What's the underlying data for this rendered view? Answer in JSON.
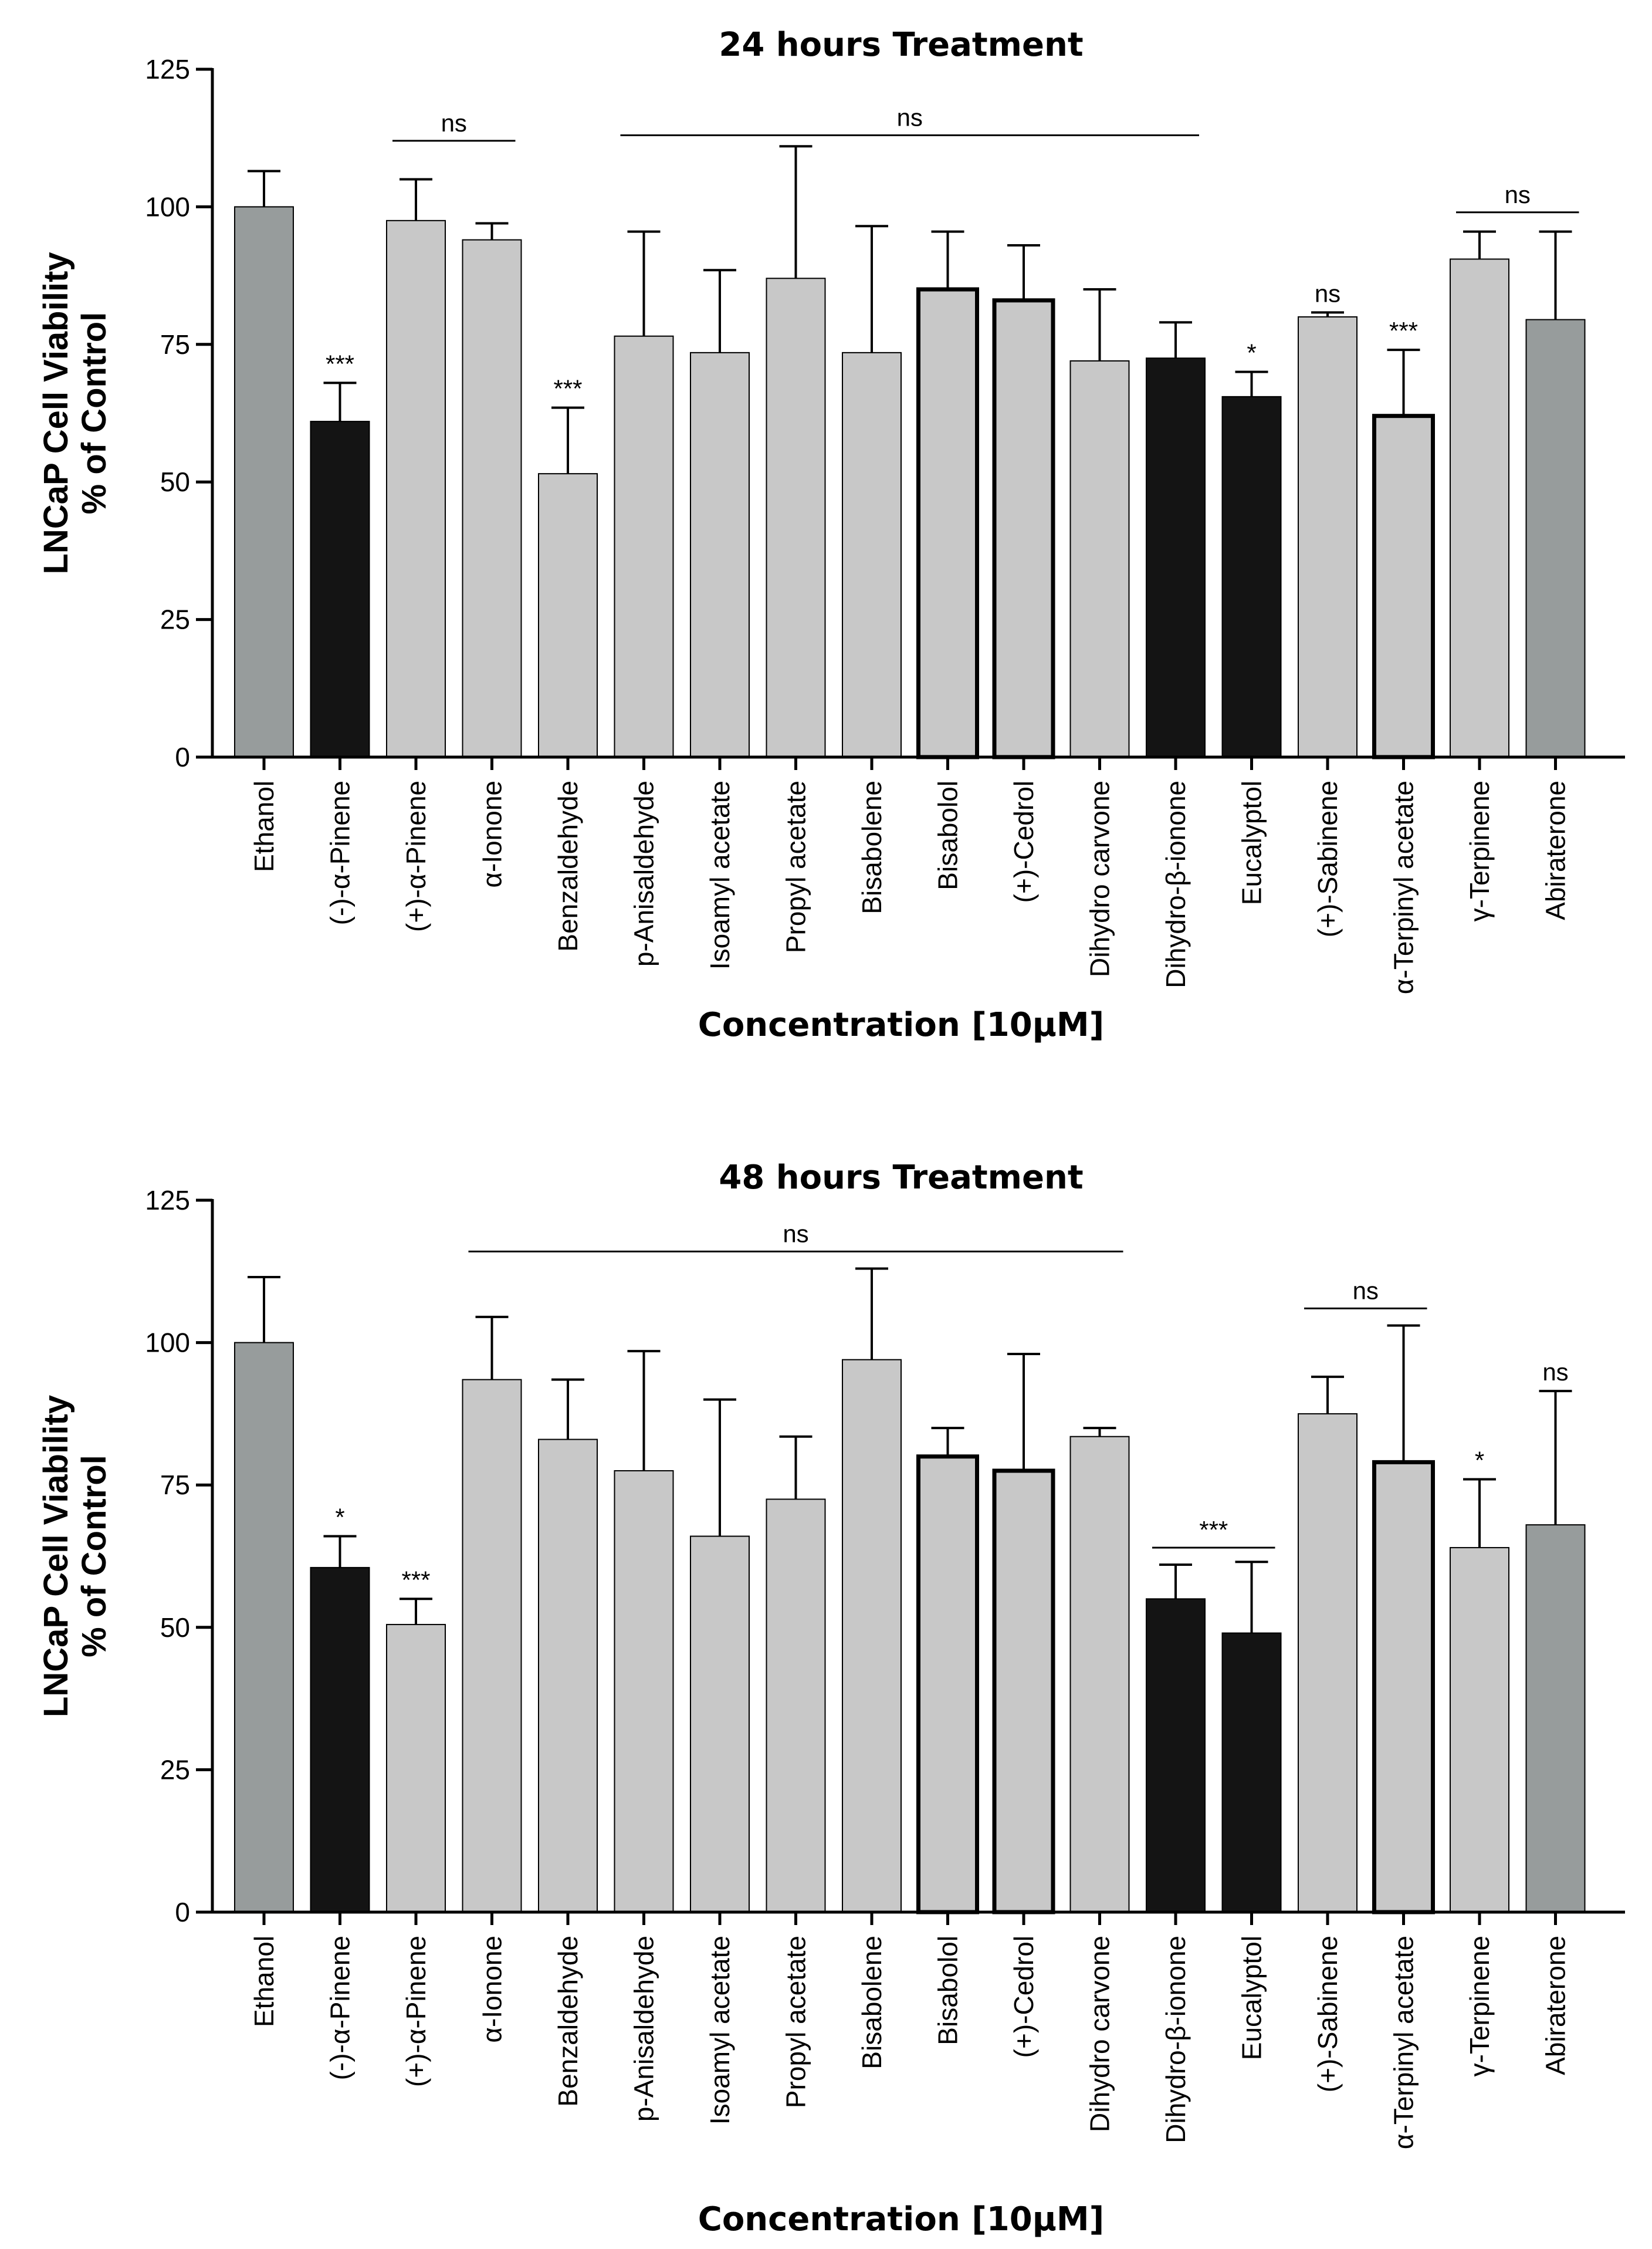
{
  "colors": {
    "light": "#c8c8c8",
    "control": "#979c9c",
    "dark": "#141414",
    "axis": "#000000"
  },
  "chart_data": [
    {
      "type": "bar",
      "title": "24 hours Treatment",
      "ylabel_line1": "LNCaP Cell Viability",
      "ylabel_line2": "% of Control",
      "xlabel": "Concentration [10μM]",
      "ylim": [
        0,
        125
      ],
      "yticks": [
        "0",
        "25",
        "50",
        "75",
        "100",
        "125"
      ],
      "grid": false,
      "categories": [
        "Ethanol",
        "(-)-α-Pinene",
        "(+)-α-Pinene",
        "α-Ionone",
        "Benzaldehyde",
        "p-Anisaldehyde",
        "Isoamyl acetate",
        "Propyl acetate",
        "Bisabolene",
        "Bisabolol",
        "(+)-Cedrol",
        "Dihydro carvone",
        "Dihydro-β-ionone",
        "Eucalyptol",
        "(+)-Sabinene",
        "α-Terpinyl acetate",
        "γ-Terpinene",
        "Abiraterone"
      ],
      "values": [
        100,
        61,
        97.5,
        94,
        51.5,
        76.5,
        73.5,
        87,
        73.5,
        85,
        83,
        72,
        72.5,
        65.5,
        80,
        62,
        90.5,
        79.5
      ],
      "errors": [
        6.5,
        7,
        7.5,
        3,
        12,
        19,
        15,
        24,
        23,
        10.5,
        10,
        13,
        6.5,
        4.5,
        0.8,
        12,
        5,
        16
      ],
      "styles": [
        "control",
        "dark",
        "light",
        "light",
        "light",
        "light",
        "light",
        "light",
        "light",
        "light-bold",
        "light-bold",
        "light",
        "dark",
        "dark",
        "light",
        "light-bold",
        "light",
        "control"
      ],
      "annotations": [
        {
          "bar": 1,
          "text": "***"
        },
        {
          "bar": 4,
          "text": "***"
        },
        {
          "bar": 13,
          "text": "*"
        },
        {
          "bar": 14,
          "text": "ns"
        },
        {
          "bar": 15,
          "text": "***"
        }
      ],
      "brackets": [
        {
          "from": 2,
          "to": 3,
          "y": 112,
          "text": "ns"
        },
        {
          "from": 5,
          "to": 12,
          "y": 113,
          "text": "ns"
        },
        {
          "from": 16,
          "to": 17,
          "y": 99,
          "text": "ns"
        }
      ]
    },
    {
      "type": "bar",
      "title": "48 hours Treatment",
      "ylabel_line1": "LNCaP Cell Viability",
      "ylabel_line2": "% of Control",
      "xlabel": "Concentration [10μM]",
      "ylim": [
        0,
        125
      ],
      "yticks": [
        "0",
        "25",
        "50",
        "75",
        "100",
        "125"
      ],
      "grid": false,
      "categories": [
        "Ethanol",
        "(-)-α-Pinene",
        "(+)-α-Pinene",
        "α-Ionone",
        "Benzaldehyde",
        "p-Anisaldehyde",
        "Isoamyl acetate",
        "Propyl acetate",
        "Bisabolene",
        "Bisabolol",
        "(+)-Cedrol",
        "Dihydro carvone",
        "Dihydro-β-ionone",
        "Eucalyptol",
        "(+)-Sabinene",
        "α-Terpinyl acetate",
        "γ-Terpinene",
        "Abiraterone"
      ],
      "values": [
        100,
        60.5,
        50.5,
        93.5,
        83,
        77.5,
        66,
        72.5,
        97,
        80,
        77.5,
        83.5,
        55,
        49,
        87.5,
        79,
        64,
        68
      ],
      "errors": [
        11.5,
        5.5,
        4.5,
        11,
        10.5,
        21,
        24,
        11,
        16,
        5,
        20.5,
        1.5,
        6,
        12.5,
        6.5,
        24,
        12,
        23.5
      ],
      "styles": [
        "control",
        "dark",
        "light",
        "light",
        "light",
        "light",
        "light",
        "light",
        "light",
        "light-bold",
        "light-bold",
        "light",
        "dark",
        "dark",
        "light",
        "light-bold",
        "light",
        "control"
      ],
      "annotations": [
        {
          "bar": 1,
          "text": "*"
        },
        {
          "bar": 2,
          "text": "***"
        },
        {
          "bar": 16,
          "text": "*"
        },
        {
          "bar": 17,
          "text": "ns"
        }
      ],
      "brackets": [
        {
          "from": 3,
          "to": 11,
          "y": 116,
          "text": "ns"
        },
        {
          "from": 12,
          "to": 13,
          "y": 64,
          "text": "***"
        },
        {
          "from": 14,
          "to": 15,
          "y": 106,
          "text": "ns"
        }
      ]
    }
  ]
}
